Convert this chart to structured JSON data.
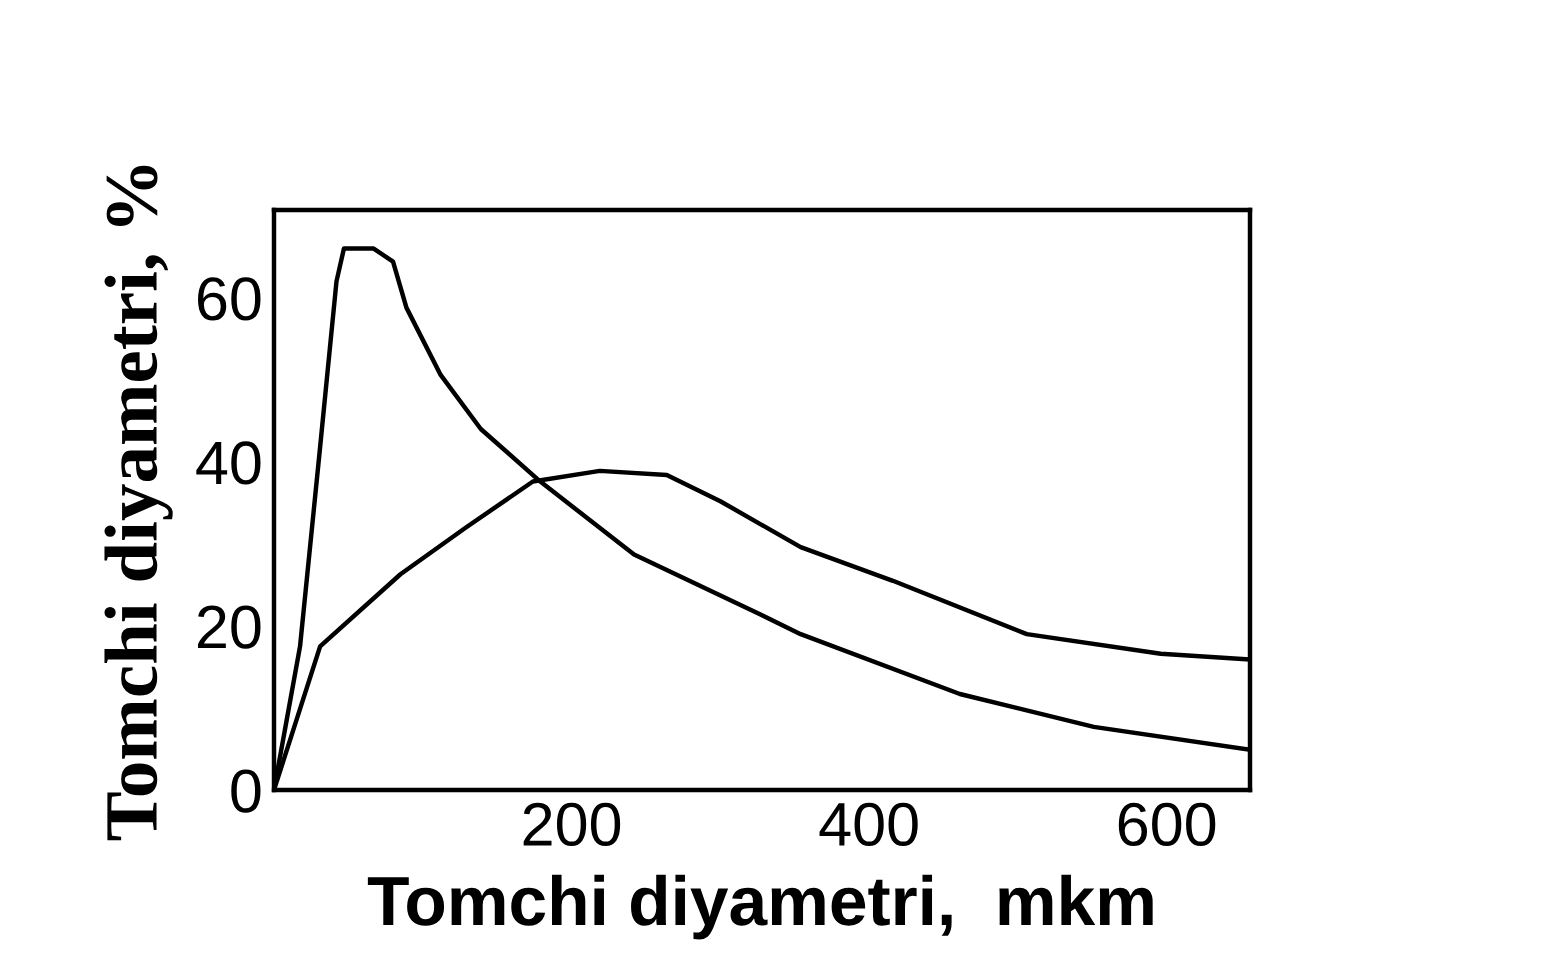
{
  "chart_data": {
    "type": "line",
    "xlabel": "Tomchi diyametri,  mkm",
    "ylabel": "Tomchi diyametri, %",
    "xlim": [
      0,
      656
    ],
    "ylim": [
      0,
      70.7
    ],
    "xticks": [
      200,
      400,
      600
    ],
    "yticks": [
      0,
      20,
      40,
      60
    ],
    "grid": false,
    "legend": false,
    "marker": "none",
    "line_style": "solid",
    "series": [
      {
        "color": "#000000",
        "x": [
          0,
          17.5,
          31,
          42,
          47,
          67,
          80,
          89,
          112,
          139,
          179,
          242,
          327,
          354,
          461,
          551,
          656
        ],
        "values": [
          0,
          17.5,
          41.8,
          62,
          66,
          66,
          64.4,
          58.8,
          50.6,
          44,
          37.6,
          28.7,
          21.4,
          19,
          11.7,
          7.7,
          4.9
        ]
      },
      {
        "color": "#000000",
        "x": [
          0,
          31,
          85,
          129,
          174,
          219,
          264,
          300,
          354,
          416,
          506,
          596,
          656
        ],
        "values": [
          0,
          17.5,
          26.3,
          32,
          37.6,
          38.9,
          38.4,
          35.2,
          29.6,
          25.5,
          19,
          16.6,
          15.9
        ]
      }
    ]
  }
}
